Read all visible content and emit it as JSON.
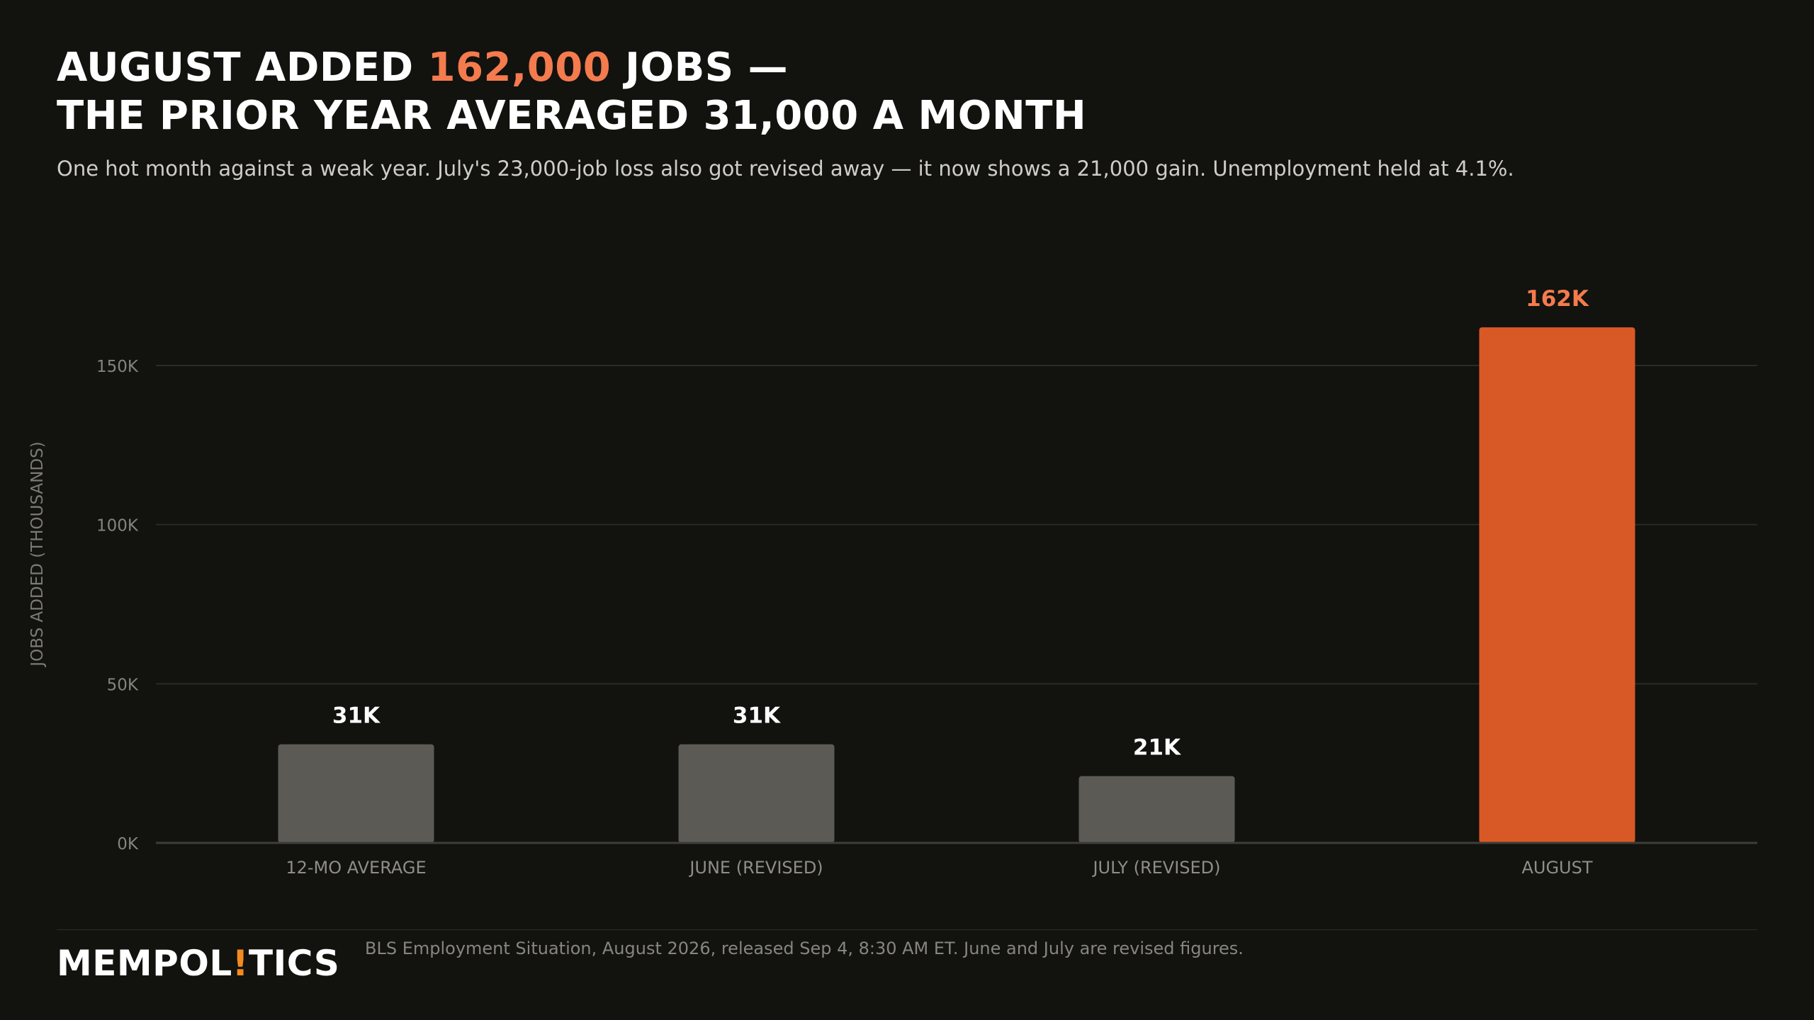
{
  "headline": {
    "line1_before": "AUGUST ADDED ",
    "line1_accent": "162,000",
    "line1_after": " JOBS —",
    "line2": "THE PRIOR YEAR AVERAGED 31,000 A MONTH"
  },
  "dek": "One hot month against a weak year. July's 23,000-job loss also got revised away — it now shows a 21,000 gain. Unemployment held at 4.1%.",
  "colors": {
    "background": "#12120f",
    "accent_text": "#f47b4d",
    "highlight_bar": "#d95926",
    "neutral_bar": "#5b5a55",
    "logo_bang": "#f28c1e"
  },
  "chart_data": {
    "type": "bar",
    "title": "AUGUST ADDED 162,000 JOBS — THE PRIOR YEAR AVERAGED 31,000 A MONTH",
    "categories": [
      "12-MO AVERAGE",
      "JUNE (REVISED)",
      "JULY (REVISED)",
      "AUGUST"
    ],
    "values": [
      31,
      31,
      21,
      162
    ],
    "value_labels": [
      "31K",
      "31K",
      "21K",
      "162K"
    ],
    "highlight_index": 3,
    "xlabel": "",
    "ylabel": "JOBS ADDED (THOUSANDS)",
    "ylim": [
      0,
      175
    ],
    "yticks": [
      0,
      50,
      100,
      150
    ],
    "ytick_labels": [
      "0K",
      "50K",
      "100K",
      "150K"
    ],
    "grid": true,
    "legend": "none"
  },
  "footer": {
    "logo_before": "MEMPOL",
    "logo_bang": "!",
    "logo_after": "TICS",
    "source": "BLS Employment Situation, August 2026, released Sep 4, 8:30 AM ET. June and July are revised figures."
  }
}
